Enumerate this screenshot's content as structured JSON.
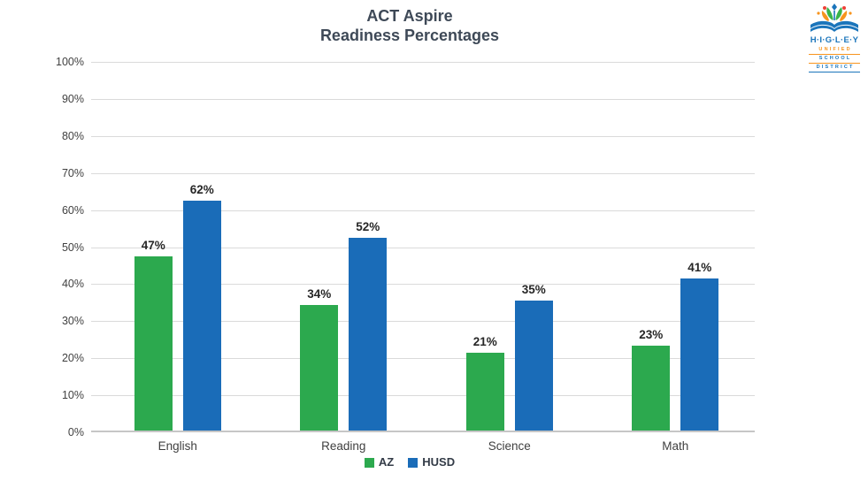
{
  "page": {
    "background": "#ffffff",
    "description": "Bar chart of ACT Aspire readiness percentages comparing AZ vs HUSD"
  },
  "colors": {
    "series_az_green": "#2CA94E",
    "series_husd_blue": "#1A6CB8",
    "gridline": "#dadada",
    "axis_baseline": "#c6c6c6",
    "title_text": "#3e4957",
    "tick_text": "#414141",
    "data_label_text": "#262626"
  },
  "icons": {
    "logo_book": "open-book-with-growing-figures-icon"
  },
  "logo": {
    "name": "H·I·G·L·E·Y",
    "lines": [
      "UNIFIED",
      "SCHOOL",
      "DISTRICT"
    ],
    "colors": {
      "blue": "#1B75BB",
      "orange": "#F7941E",
      "green": "#39B54A",
      "red": "#EE4036"
    }
  },
  "chart_data": {
    "type": "bar",
    "title": "ACT Aspire",
    "subtitle": "Readiness Percentages",
    "categories": [
      "English",
      "Reading",
      "Science",
      "Math"
    ],
    "series": [
      {
        "name": "AZ",
        "color": "#2CA94E",
        "values": [
          47,
          34,
          21,
          23
        ]
      },
      {
        "name": "HUSD",
        "color": "#1A6CB8",
        "values": [
          62,
          52,
          35,
          41
        ]
      }
    ],
    "data_labels": [
      "47%",
      "62%",
      "34%",
      "52%",
      "21%",
      "35%",
      "23%",
      "41%"
    ],
    "yticks": [
      "0%",
      "10%",
      "20%",
      "30%",
      "40%",
      "50%",
      "60%",
      "70%",
      "80%",
      "90%",
      "100%"
    ],
    "ylim": [
      0,
      100
    ],
    "ytick_step": 10,
    "value_suffix": "%",
    "grid": true,
    "legend_position": "bottom",
    "xlabel": "",
    "ylabel": ""
  }
}
